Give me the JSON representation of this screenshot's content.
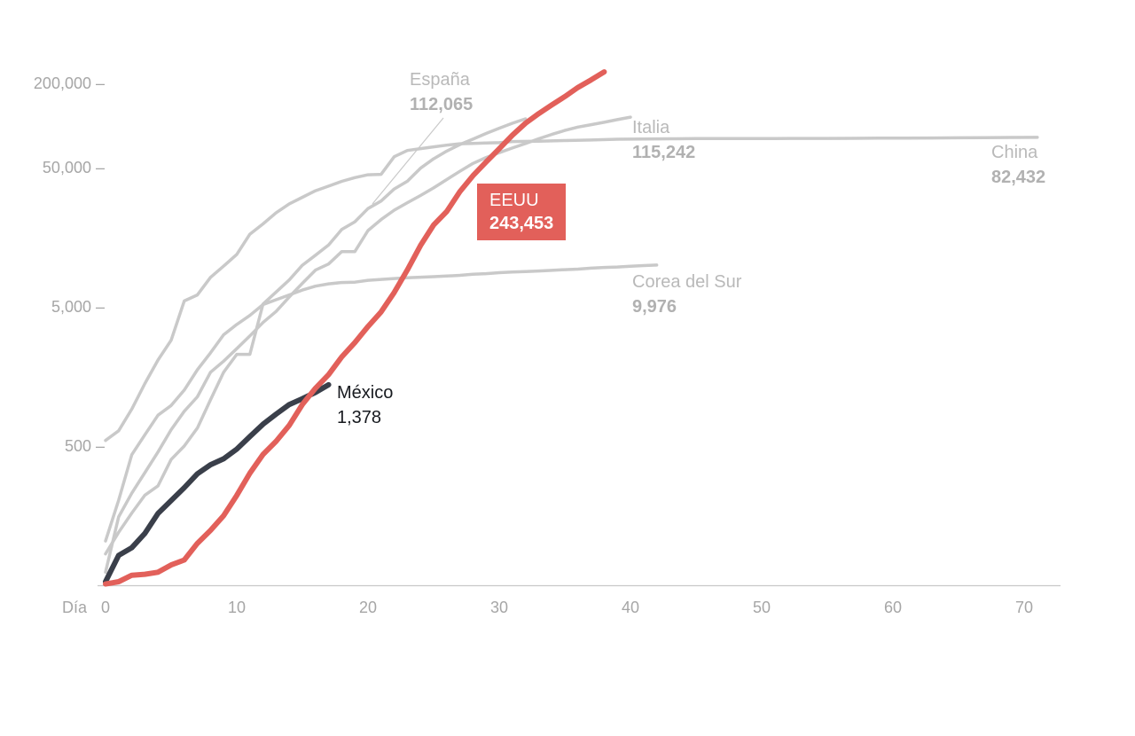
{
  "colors": {
    "background": "#ffffff",
    "axis_line": "#c8c8c8",
    "tick_text": "#a6a6a6",
    "context_line": "#c9c9c9",
    "context_label": "#b9b9b9",
    "context_value": "#b1b1b1",
    "mexico_line": "#3a3f4a",
    "eeuu_line": "#e2605a",
    "badge_background": "#e2605a",
    "badge_text": "#ffffff"
  },
  "chart_data": {
    "type": "line",
    "y_scale": "log",
    "x_axis": {
      "label": "Día",
      "ticks": [
        {
          "value": 0,
          "label": "0"
        },
        {
          "value": 10,
          "label": "10"
        },
        {
          "value": 20,
          "label": "20"
        },
        {
          "value": 30,
          "label": "30"
        },
        {
          "value": 40,
          "label": "40"
        },
        {
          "value": 50,
          "label": "50"
        },
        {
          "value": 60,
          "label": "60"
        },
        {
          "value": 70,
          "label": "70"
        }
      ]
    },
    "y_axis": {
      "ticks": [
        {
          "value": 200000,
          "label": "200,000 –"
        },
        {
          "value": 50000,
          "label": "50,000 –"
        },
        {
          "value": 5000,
          "label": "5,000 –"
        },
        {
          "value": 500,
          "label": "500 –"
        }
      ]
    },
    "series": [
      {
        "id": "china",
        "label": "China",
        "value": 82432,
        "value_label": "82,432",
        "color": "#c9c9c9",
        "emphasized": false,
        "points": [
          [
            0,
            548
          ],
          [
            1,
            643
          ],
          [
            2,
            920
          ],
          [
            3,
            1406
          ],
          [
            4,
            2075
          ],
          [
            5,
            2877
          ],
          [
            6,
            5509
          ],
          [
            7,
            6087
          ],
          [
            8,
            8141
          ],
          [
            9,
            9802
          ],
          [
            10,
            11891
          ],
          [
            11,
            16630
          ],
          [
            12,
            19716
          ],
          [
            13,
            23707
          ],
          [
            14,
            27440
          ],
          [
            15,
            30587
          ],
          [
            16,
            34110
          ],
          [
            17,
            36814
          ],
          [
            18,
            39829
          ],
          [
            19,
            42354
          ],
          [
            20,
            44386
          ],
          [
            21,
            44759
          ],
          [
            22,
            59895
          ],
          [
            23,
            66358
          ],
          [
            24,
            68413
          ],
          [
            25,
            70513
          ],
          [
            26,
            72434
          ],
          [
            27,
            74211
          ],
          [
            28,
            74619
          ],
          [
            29,
            75077
          ],
          [
            30,
            75550
          ],
          [
            31,
            77001
          ],
          [
            33,
            77241
          ],
          [
            35,
            78166
          ],
          [
            37,
            78928
          ],
          [
            39,
            79932
          ],
          [
            41,
            80261
          ],
          [
            43,
            80537
          ],
          [
            45,
            80770
          ],
          [
            47,
            80860
          ],
          [
            49,
            80921
          ],
          [
            51,
            80945
          ],
          [
            53,
            81003
          ],
          [
            55,
            81058
          ],
          [
            57,
            81156
          ],
          [
            59,
            81305
          ],
          [
            61,
            81498
          ],
          [
            63,
            81661
          ],
          [
            65,
            81897
          ],
          [
            67,
            82122
          ],
          [
            69,
            82279
          ],
          [
            71,
            82432
          ]
        ]
      },
      {
        "id": "corea-del-sur",
        "label": "Corea del Sur",
        "value": 9976,
        "value_label": "9,976",
        "color": "#c9c9c9",
        "emphasized": false,
        "points": [
          [
            0,
            104
          ],
          [
            1,
            204
          ],
          [
            2,
            433
          ],
          [
            3,
            602
          ],
          [
            4,
            833
          ],
          [
            5,
            977
          ],
          [
            6,
            1261
          ],
          [
            7,
            1766
          ],
          [
            8,
            2337
          ],
          [
            9,
            3150
          ],
          [
            10,
            3736
          ],
          [
            11,
            4335
          ],
          [
            12,
            5186
          ],
          [
            13,
            5621
          ],
          [
            14,
            6088
          ],
          [
            15,
            6593
          ],
          [
            16,
            7041
          ],
          [
            17,
            7314
          ],
          [
            18,
            7478
          ],
          [
            19,
            7513
          ],
          [
            20,
            7755
          ],
          [
            21,
            7869
          ],
          [
            22,
            7979
          ],
          [
            23,
            8086
          ],
          [
            24,
            8162
          ],
          [
            25,
            8236
          ],
          [
            26,
            8320
          ],
          [
            27,
            8413
          ],
          [
            28,
            8565
          ],
          [
            29,
            8652
          ],
          [
            30,
            8799
          ],
          [
            31,
            8897
          ],
          [
            32,
            8961
          ],
          [
            33,
            9037
          ],
          [
            34,
            9137
          ],
          [
            35,
            9241
          ],
          [
            36,
            9332
          ],
          [
            37,
            9478
          ],
          [
            38,
            9583
          ],
          [
            39,
            9661
          ],
          [
            40,
            9786
          ],
          [
            41,
            9887
          ],
          [
            42,
            9976
          ]
        ]
      },
      {
        "id": "italia",
        "label": "Italia",
        "value": 115242,
        "value_label": "115,242",
        "color": "#c9c9c9",
        "emphasized": false,
        "points": [
          [
            0,
            62
          ],
          [
            1,
            155
          ],
          [
            2,
            229
          ],
          [
            3,
            322
          ],
          [
            4,
            453
          ],
          [
            5,
            655
          ],
          [
            6,
            888
          ],
          [
            7,
            1128
          ],
          [
            8,
            1694
          ],
          [
            9,
            2036
          ],
          [
            10,
            2502
          ],
          [
            11,
            3089
          ],
          [
            12,
            3858
          ],
          [
            13,
            4636
          ],
          [
            14,
            5883
          ],
          [
            15,
            7375
          ],
          [
            16,
            9172
          ],
          [
            17,
            10149
          ],
          [
            18,
            12462
          ],
          [
            19,
            12462
          ],
          [
            20,
            17660
          ],
          [
            21,
            21157
          ],
          [
            22,
            24747
          ],
          [
            23,
            27980
          ],
          [
            24,
            31506
          ],
          [
            25,
            35713
          ],
          [
            26,
            41035
          ],
          [
            27,
            47021
          ],
          [
            28,
            53578
          ],
          [
            29,
            59138
          ],
          [
            30,
            63927
          ],
          [
            31,
            69176
          ],
          [
            32,
            74386
          ],
          [
            33,
            80589
          ],
          [
            34,
            86498
          ],
          [
            35,
            92472
          ],
          [
            36,
            97689
          ],
          [
            37,
            101739
          ],
          [
            38,
            105792
          ],
          [
            39,
            110574
          ],
          [
            40,
            115242
          ]
        ]
      },
      {
        "id": "espana",
        "label": "España",
        "value": 112065,
        "value_label": "112,065",
        "color": "#c9c9c9",
        "emphasized": false,
        "points": [
          [
            0,
            84
          ],
          [
            1,
            120
          ],
          [
            2,
            165
          ],
          [
            3,
            222
          ],
          [
            4,
            259
          ],
          [
            5,
            400
          ],
          [
            6,
            500
          ],
          [
            7,
            673
          ],
          [
            8,
            1073
          ],
          [
            9,
            1695
          ],
          [
            10,
            2277
          ],
          [
            11,
            2277
          ],
          [
            12,
            5232
          ],
          [
            13,
            6391
          ],
          [
            14,
            7798
          ],
          [
            15,
            9942
          ],
          [
            16,
            11748
          ],
          [
            17,
            13910
          ],
          [
            18,
            17963
          ],
          [
            19,
            20410
          ],
          [
            20,
            25374
          ],
          [
            21,
            28768
          ],
          [
            22,
            35136
          ],
          [
            23,
            39885
          ],
          [
            24,
            49515
          ],
          [
            25,
            57786
          ],
          [
            26,
            65719
          ],
          [
            27,
            73235
          ],
          [
            28,
            80110
          ],
          [
            29,
            87956
          ],
          [
            30,
            95923
          ],
          [
            31,
            104118
          ],
          [
            32,
            112065
          ]
        ]
      },
      {
        "id": "mexico",
        "label": "México",
        "value": 1378,
        "value_label": "1,378",
        "color": "#3a3f4a",
        "emphasized": true,
        "points": [
          [
            0,
            53
          ],
          [
            1,
            82
          ],
          [
            2,
            93
          ],
          [
            3,
            118
          ],
          [
            4,
            164
          ],
          [
            5,
            203
          ],
          [
            6,
            251
          ],
          [
            7,
            316
          ],
          [
            8,
            367
          ],
          [
            9,
            405
          ],
          [
            10,
            475
          ],
          [
            11,
            585
          ],
          [
            12,
            717
          ],
          [
            13,
            848
          ],
          [
            14,
            993
          ],
          [
            15,
            1094
          ],
          [
            16,
            1215
          ],
          [
            17,
            1378
          ]
        ]
      },
      {
        "id": "eeuu",
        "label": "EEUU",
        "value": 243453,
        "value_label": "243,453",
        "color": "#e2605a",
        "emphasized": true,
        "points": [
          [
            0,
            51
          ],
          [
            1,
            53
          ],
          [
            2,
            59
          ],
          [
            3,
            60
          ],
          [
            4,
            62
          ],
          [
            5,
            70
          ],
          [
            6,
            76
          ],
          [
            7,
            100
          ],
          [
            8,
            124
          ],
          [
            9,
            158
          ],
          [
            10,
            221
          ],
          [
            11,
            319
          ],
          [
            12,
            435
          ],
          [
            13,
            541
          ],
          [
            14,
            704
          ],
          [
            15,
            994
          ],
          [
            16,
            1301
          ],
          [
            17,
            1630
          ],
          [
            18,
            2183
          ],
          [
            19,
            2770
          ],
          [
            20,
            3613
          ],
          [
            21,
            4596
          ],
          [
            22,
            6344
          ],
          [
            23,
            9197
          ],
          [
            24,
            13779
          ],
          [
            25,
            19367
          ],
          [
            26,
            24192
          ],
          [
            27,
            33592
          ],
          [
            28,
            43781
          ],
          [
            29,
            54856
          ],
          [
            30,
            68211
          ],
          [
            31,
            85435
          ],
          [
            32,
            104126
          ],
          [
            33,
            121902
          ],
          [
            34,
            140886
          ],
          [
            35,
            161807
          ],
          [
            36,
            188172
          ],
          [
            37,
            213372
          ],
          [
            38,
            243453
          ]
        ]
      }
    ]
  }
}
